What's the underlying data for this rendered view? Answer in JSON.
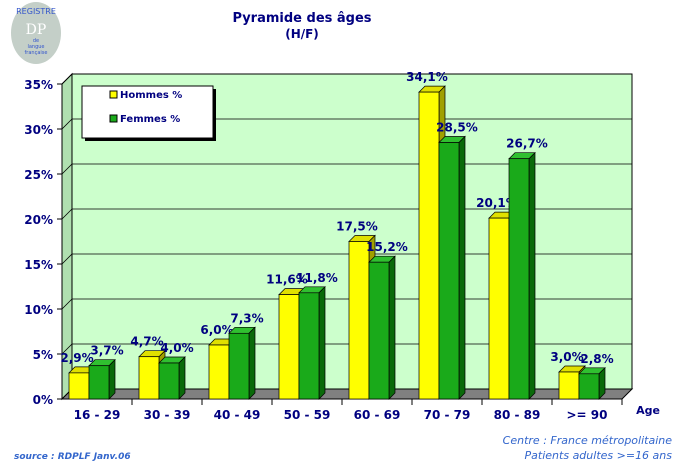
{
  "logo": {
    "text": "REGISTRE",
    "initials": "DP",
    "sub1": "de",
    "sub2": "langue",
    "sub3": "française"
  },
  "chart_data": {
    "type": "bar",
    "title": "Pyramide des âges",
    "subtitle": "(H/F)",
    "xlabel": "Age",
    "ylabel": "",
    "categories": [
      "16 - 29",
      "30 - 39",
      "40 - 49",
      "50 - 59",
      "60 - 69",
      "70 - 79",
      "80 - 89",
      ">= 90"
    ],
    "series": [
      {
        "name": "Hommes %",
        "color": "#ffff00",
        "values": [
          2.9,
          4.7,
          6.0,
          11.6,
          17.5,
          34.1,
          20.1,
          3.0
        ],
        "labels": [
          "2,9%",
          "4,7%",
          "6,0%",
          "11,6%",
          "17,5%",
          "34,1%",
          "20,1%",
          "3,0%"
        ]
      },
      {
        "name": "Femmes %",
        "color": "#1aaa1a",
        "values": [
          3.7,
          4.0,
          7.3,
          11.8,
          15.2,
          28.5,
          26.7,
          2.8
        ],
        "labels": [
          "3,7%",
          "4,0%",
          "7,3%",
          "11,8%",
          "15,2%",
          "28,5%",
          "26,7%",
          "2,8%"
        ]
      }
    ],
    "ylim": [
      0,
      35
    ],
    "yticks": [
      "0%",
      "5%",
      "10%",
      "15%",
      "20%",
      "25%",
      "30%",
      "35%"
    ],
    "grid": true,
    "legend": "top-left",
    "background": "#ccffcc"
  },
  "footer": {
    "source": "source : RDPLF  Janv.06",
    "centre": "Centre : France métropolitaine",
    "patients": "Patients adultes >=16 ans"
  }
}
